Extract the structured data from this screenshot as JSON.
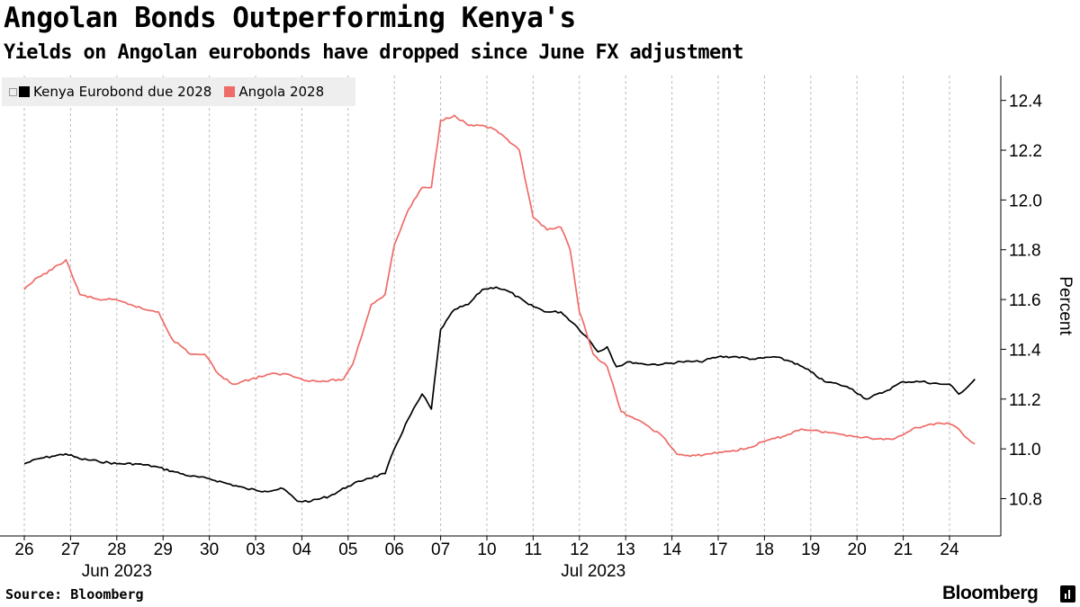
{
  "title": "Angolan Bonds Outperforming Kenya's",
  "subtitle": "Yields on Angolan eurobonds have dropped since June FX adjustment",
  "source": "Source: Bloomberg",
  "brand": "Bloomberg",
  "legend": {
    "kenya": "Kenya Eurobond due 2028",
    "angola": "Angola 2028"
  },
  "colors": {
    "kenya": "#000000",
    "angola": "#ef6b67",
    "grid": "#bbbbbb",
    "legend_bg": "#eeeeee"
  },
  "chart_data": {
    "type": "line",
    "title": "Angolan Bonds Outperforming Kenya's",
    "ylabel": "Percent",
    "xlabel": "",
    "ylim": [
      10.65,
      12.5
    ],
    "yticks": [
      10.8,
      11.0,
      11.2,
      11.4,
      11.6,
      11.8,
      12.0,
      12.2,
      12.4
    ],
    "ytick_labels": [
      "10.8",
      "11.0",
      "11.2",
      "11.4",
      "11.6",
      "11.8",
      "12.0",
      "12.2",
      "12.4"
    ],
    "y_axis_side": "right",
    "x_categories": [
      "26",
      "27",
      "28",
      "29",
      "30",
      "03",
      "04",
      "05",
      "06",
      "07",
      "10",
      "11",
      "12",
      "13",
      "14",
      "17",
      "18",
      "19",
      "20",
      "21",
      "24"
    ],
    "x_month_labels": [
      {
        "label": "Jun 2023",
        "at_index": 2
      },
      {
        "label": "Jul 2023",
        "at_index": 12.3
      }
    ],
    "grid": "vertical dashed at each day",
    "series": [
      {
        "name": "Kenya Eurobond due 2028",
        "t": [
          0,
          0.3,
          0.6,
          0.9,
          1.2,
          1.6,
          2.0,
          2.4,
          2.8,
          3.2,
          3.6,
          4.0,
          4.4,
          4.8,
          5.2,
          5.6,
          5.9,
          6.2,
          6.6,
          7.0,
          7.4,
          7.8,
          8.0,
          8.3,
          8.6,
          8.8,
          9.0,
          9.3,
          9.6,
          9.9,
          10.2,
          10.5,
          10.9,
          11.3,
          11.6,
          11.9,
          12.2,
          12.4,
          12.6,
          12.8,
          13.1,
          13.4,
          13.8,
          14.2,
          14.6,
          15.0,
          15.4,
          15.8,
          16.2,
          16.6,
          17.0,
          17.3,
          17.6,
          17.9,
          18.2,
          18.6,
          19.0,
          19.4,
          19.8,
          20.0,
          20.2,
          20.4,
          20.55
        ],
        "values": [
          10.94,
          10.96,
          10.97,
          10.98,
          10.96,
          10.95,
          10.94,
          10.94,
          10.93,
          10.91,
          10.89,
          10.88,
          10.86,
          10.84,
          10.83,
          10.84,
          10.79,
          10.79,
          10.81,
          10.85,
          10.88,
          10.9,
          11.0,
          11.12,
          11.22,
          11.16,
          11.48,
          11.56,
          11.58,
          11.64,
          11.65,
          11.63,
          11.58,
          11.55,
          11.55,
          11.5,
          11.44,
          11.39,
          11.41,
          11.33,
          11.35,
          11.34,
          11.34,
          11.35,
          11.35,
          11.37,
          11.37,
          11.36,
          11.37,
          11.35,
          11.31,
          11.27,
          11.26,
          11.24,
          11.2,
          11.23,
          11.27,
          11.27,
          11.26,
          11.26,
          11.22,
          11.25,
          11.28
        ]
      },
      {
        "name": "Angola 2028",
        "t": [
          0,
          0.3,
          0.6,
          0.9,
          1.2,
          1.6,
          1.9,
          2.3,
          2.6,
          2.9,
          3.2,
          3.6,
          3.9,
          4.2,
          4.5,
          4.9,
          5.3,
          5.7,
          6.0,
          6.4,
          6.9,
          7.1,
          7.5,
          7.8,
          8.0,
          8.3,
          8.6,
          8.8,
          9.0,
          9.3,
          9.6,
          9.9,
          10.2,
          10.5,
          10.7,
          11.0,
          11.3,
          11.6,
          11.8,
          12.0,
          12.1,
          12.3,
          12.6,
          12.9,
          13.2,
          13.5,
          13.8,
          14.1,
          14.4,
          14.8,
          15.2,
          15.6,
          16.0,
          16.4,
          16.8,
          17.2,
          17.6,
          18.0,
          18.4,
          18.8,
          19.2,
          19.6,
          20.0,
          20.2,
          20.4,
          20.55
        ],
        "values": [
          11.64,
          11.69,
          11.72,
          11.76,
          11.62,
          11.6,
          11.6,
          11.58,
          11.56,
          11.55,
          11.44,
          11.38,
          11.38,
          11.3,
          11.26,
          11.28,
          11.3,
          11.3,
          11.28,
          11.27,
          11.28,
          11.34,
          11.58,
          11.62,
          11.82,
          11.96,
          12.05,
          12.05,
          12.32,
          12.34,
          12.3,
          12.3,
          12.28,
          12.23,
          12.2,
          11.93,
          11.88,
          11.89,
          11.8,
          11.55,
          11.5,
          11.38,
          11.33,
          11.15,
          11.12,
          11.09,
          11.05,
          10.98,
          10.97,
          10.98,
          10.99,
          11.0,
          11.03,
          11.05,
          11.08,
          11.07,
          11.06,
          11.05,
          11.04,
          11.04,
          11.08,
          11.1,
          11.1,
          11.08,
          11.04,
          11.02
        ]
      }
    ]
  }
}
